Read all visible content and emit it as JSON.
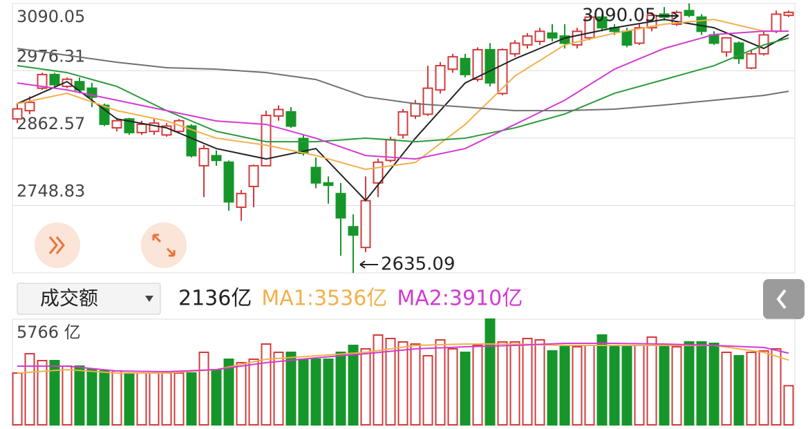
{
  "chart_data": [
    {
      "type": "candlestick",
      "ylim": [
        2635.09,
        3090.05
      ],
      "yticks": [
        3090.05,
        2976.31,
        2862.57,
        2748.83
      ],
      "grid": true,
      "up_color": "#d23a3a",
      "down_color": "#16962a",
      "open": [
        2895,
        2909,
        2947,
        2970,
        2950,
        2958,
        2947,
        2918,
        2880,
        2895,
        2872,
        2874,
        2868,
        2874,
        2883,
        2816,
        2833,
        2822,
        2746,
        2781,
        2816,
        2900,
        2907,
        2862,
        2813,
        2787,
        2769,
        2713,
        2678,
        2787,
        2825,
        2868,
        2900,
        2903,
        2944,
        2979,
        2997,
        2962,
        3012,
        2938,
        3005,
        3020,
        3026,
        3040,
        3035,
        3020,
        3032,
        3067,
        3049,
        3043,
        3023,
        3049,
        3072,
        3055,
        3078,
        3067,
        3037,
        3008,
        3023,
        2981,
        3005,
        3043,
        3070
      ],
      "close": [
        2912,
        2923,
        2970,
        2953,
        2962,
        2944,
        2932,
        2886,
        2892,
        2872,
        2886,
        2888,
        2883,
        2892,
        2833,
        2845,
        2825,
        2755,
        2769,
        2816,
        2901,
        2911,
        2883,
        2837,
        2787,
        2783,
        2728,
        2699,
        2757,
        2822,
        2860,
        2907,
        2921,
        2947,
        2985,
        3000,
        2970,
        3012,
        2956,
        3012,
        3023,
        3035,
        3043,
        3032,
        3023,
        3043,
        3067,
        3049,
        3043,
        3020,
        3049,
        3070,
        3067,
        3075,
        3070,
        3043,
        3023,
        3032,
        2997,
        3005,
        3037,
        3072,
        3075
      ],
      "high": [
        2921,
        2933,
        2973,
        2973,
        2965,
        2965,
        2956,
        2921,
        2897,
        2897,
        2892,
        2895,
        2888,
        2895,
        2886,
        2851,
        2842,
        2825,
        2775,
        2818,
        2909,
        2918,
        2915,
        2868,
        2830,
        2798,
        2787,
        2734,
        2798,
        2828,
        2865,
        2912,
        2927,
        2985,
        2991,
        3005,
        3005,
        3016,
        3023,
        3014,
        3028,
        3040,
        3049,
        3055,
        3055,
        3049,
        3072,
        3072,
        3055,
        3049,
        3055,
        3075,
        3084,
        3078,
        3090.05,
        3072,
        3043,
        3032,
        3026,
        3012,
        3043,
        3078,
        3078
      ],
      "low": [
        2888,
        2903,
        2944,
        2950,
        2947,
        2938,
        2915,
        2883,
        2874,
        2868,
        2868,
        2868,
        2865,
        2872,
        2830,
        2763,
        2816,
        2740,
        2723,
        2746,
        2816,
        2892,
        2880,
        2833,
        2778,
        2752,
        2664,
        2635.09,
        2670,
        2763,
        2822,
        2862,
        2895,
        2900,
        2938,
        2973,
        2965,
        2958,
        2950,
        2935,
        3000,
        3014,
        3020,
        3026,
        3014,
        3014,
        3028,
        3043,
        3037,
        3016,
        3020,
        3043,
        3061,
        3052,
        3067,
        3037,
        3020,
        3000,
        2988,
        2979,
        3002,
        3040,
        3067
      ],
      "lines": [
        {
          "color": "#222222",
          "x": [
            0,
            4,
            8,
            12,
            16,
            20,
            24,
            28,
            32,
            36,
            40,
            44,
            48,
            52,
            56,
            60,
            62
          ],
          "values": [
            2920.8,
            2958.1,
            2895.1,
            2880,
            2845,
            2827.5,
            2845,
            2757.5,
            2862.5,
            2955.8,
            2996.6,
            3031.6,
            3049.1,
            3063.1,
            3049.1,
            3014.1,
            3037.5
          ]
        },
        {
          "color": "#f2b04a",
          "x": [
            0,
            4,
            8,
            12,
            16,
            20,
            24,
            28,
            32,
            36,
            40,
            44,
            48,
            52,
            56,
            60,
            62
          ],
          "values": [
            2920.8,
            2938.3,
            2909.1,
            2891.6,
            2862.5,
            2850.8,
            2833.3,
            2810,
            2821.6,
            2885.8,
            2967.5,
            3020,
            3039.8,
            3055,
            3063.1,
            3043.3,
            3043.3
          ]
        },
        {
          "color": "#2a9a3a",
          "x": [
            0,
            4,
            8,
            12,
            16,
            20,
            24,
            28,
            32,
            36,
            40,
            44,
            48,
            52,
            56,
            60,
            62
          ],
          "values": [
            2985,
            2973.3,
            2950,
            2909.1,
            2874.1,
            2856.6,
            2856.6,
            2862.5,
            2856.6,
            2862.5,
            2880,
            2903.3,
            2938.3,
            2961.6,
            2985,
            3020,
            3031.6
          ]
        },
        {
          "color": "#d23ad2",
          "x": [
            0,
            4,
            8,
            12,
            16,
            20,
            24,
            28,
            32,
            36,
            40,
            44,
            48,
            52,
            56,
            60,
            62
          ],
          "values": [
            2955.8,
            2944.1,
            2926.6,
            2909.1,
            2891.6,
            2885.8,
            2862.5,
            2833.3,
            2827.5,
            2845,
            2885.8,
            2926.6,
            2979.1,
            3014.1,
            3037.5,
            3043.3,
            3043.3
          ]
        },
        {
          "color": "#707070",
          "x": [
            0,
            4,
            8,
            12,
            16,
            20,
            24,
            28,
            32,
            36,
            40,
            44,
            48,
            52,
            56,
            60,
            62
          ],
          "values": [
            3014.1,
            3002.5,
            2990.8,
            2981.5,
            2979.1,
            2973.3,
            2961.6,
            2932.5,
            2920.8,
            2915,
            2909.1,
            2909.1,
            2911.5,
            2918.5,
            2926.6,
            2934.8,
            2941.8
          ]
        }
      ],
      "annotations": [
        {
          "text": "3090.05",
          "index": 54,
          "value": 3090.05
        },
        {
          "text": "2635.09",
          "index": 27,
          "value": 2635.09
        }
      ]
    },
    {
      "type": "volume",
      "selector": "成交额",
      "legend": [
        {
          "text": "2136亿",
          "color": "#222222"
        },
        {
          "text": "MA1:3536亿",
          "color": "#f2b04a"
        },
        {
          "text": "MA2:3910亿",
          "color": "#d23ad2"
        }
      ],
      "ylim": [
        0,
        5766
      ],
      "yticks": [
        {
          "value": 5766,
          "label": "5766 亿"
        }
      ],
      "values": [
        2827,
        3882,
        3505,
        3505,
        3204,
        3204,
        3015,
        2940,
        2940,
        2827,
        2827,
        2827,
        2827,
        2827,
        2827,
        3957,
        3015,
        3580,
        3392,
        3580,
        4410,
        3957,
        3957,
        3580,
        3580,
        3580,
        3957,
        4334,
        4146,
        4900,
        4711,
        4523,
        4410,
        3769,
        4636,
        4146,
        3957,
        4334,
        5766,
        4523,
        4523,
        4711,
        4636,
        4033,
        4259,
        4259,
        4334,
        4900,
        4334,
        4334,
        4334,
        4787,
        4334,
        4259,
        4523,
        4523,
        4447,
        3957,
        3769,
        3957,
        4033,
        4146,
        2136
      ],
      "lines": [
        {
          "color": "#f2b04a",
          "x": [
            0,
            4,
            8,
            12,
            16,
            20,
            24,
            28,
            32,
            36,
            40,
            44,
            48,
            52,
            56,
            60,
            62
          ],
          "values": [
            2827,
            3015,
            2827,
            2827,
            3015,
            3580,
            3769,
            3957,
            4334,
            4410,
            4410,
            4334,
            4334,
            4334,
            4334,
            3957,
            3536
          ]
        },
        {
          "color": "#d23ad2",
          "x": [
            0,
            4,
            8,
            12,
            16,
            20,
            24,
            28,
            32,
            36,
            40,
            44,
            48,
            52,
            56,
            60,
            62
          ],
          "values": [
            3204,
            3204,
            2940,
            2902,
            3015,
            3392,
            3656,
            3882,
            4146,
            4259,
            4334,
            4447,
            4447,
            4410,
            4334,
            4221,
            3910
          ]
        }
      ]
    }
  ]
}
